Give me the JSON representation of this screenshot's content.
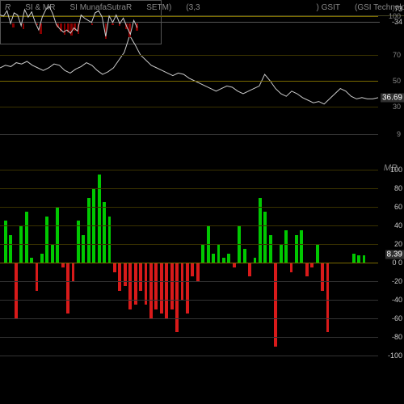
{
  "header": {
    "items": [
      "R",
      "SI & MR",
      "SI MunafaSutraR",
      "SETM)",
      "(3,3",
      "",
      "",
      "",
      "",
      "",
      "",
      "",
      ") GSIT",
      "(GSI Technology, Inc.) MunafaSutra.co"
    ]
  },
  "rsi_chart": {
    "type": "line",
    "ylim": [
      0,
      100
    ],
    "yticks": [
      9,
      30,
      50,
      70,
      100
    ],
    "grid_colors": {
      "light": "#7a6a00",
      "dark": "#3a3200",
      "lower": "#333"
    },
    "line_color": "#cccccc",
    "background": "#000000",
    "current_value": "36.69",
    "points_y": [
      60,
      62,
      61,
      64,
      63,
      65,
      62,
      60,
      58,
      60,
      63,
      62,
      58,
      56,
      59,
      61,
      64,
      62,
      58,
      55,
      57,
      60,
      66,
      72,
      85,
      78,
      70,
      66,
      62,
      60,
      58,
      56,
      54,
      56,
      55,
      52,
      50,
      48,
      46,
      44,
      42,
      44,
      46,
      45,
      42,
      40,
      42,
      44,
      46,
      55,
      50,
      44,
      40,
      38,
      42,
      40,
      37,
      35,
      33,
      34,
      32,
      36,
      40,
      44,
      42,
      38,
      36,
      37,
      36,
      36,
      37
    ]
  },
  "mr_chart": {
    "type": "bar",
    "label": "MR",
    "ylim": [
      -100,
      100
    ],
    "yticks": [
      -100,
      -80,
      -60,
      -40,
      -20,
      0,
      20,
      40,
      60,
      80,
      100
    ],
    "zero_ticks": [
      "0",
      "0"
    ],
    "grid_color_pos": "#3a3200",
    "grid_color_zero": "#7a6a00",
    "grid_color_neg": "#333333",
    "pos_color": "#00c800",
    "neg_color": "#d81a1a",
    "background": "#000000",
    "current_value": "8.39",
    "bars": [
      45,
      30,
      -60,
      40,
      55,
      5,
      -30,
      10,
      50,
      20,
      60,
      -5,
      -55,
      -20,
      45,
      30,
      70,
      80,
      95,
      65,
      50,
      -10,
      -30,
      -25,
      -50,
      -45,
      -30,
      -45,
      -60,
      -50,
      -55,
      -60,
      -50,
      -75,
      -40,
      -55,
      -15,
      -20,
      20,
      40,
      10,
      20,
      5,
      10,
      -5,
      40,
      15,
      -15,
      5,
      70,
      55,
      30,
      -90,
      20,
      35,
      -10,
      30,
      35,
      -15,
      -5,
      20,
      -30,
      -75,
      0,
      0,
      0,
      0,
      10,
      8,
      8
    ]
  },
  "mini_chart": {
    "type": "line_bar",
    "ylim": [
      -100,
      100
    ],
    "line_color": "#cccccc",
    "bar_neg_color": "#880000",
    "bar_pos_color": "#006600",
    "tags": [
      ".73",
      "-34"
    ],
    "points_y": [
      30,
      25,
      50,
      -10,
      40,
      30,
      -20,
      55,
      20,
      45,
      -5,
      -40,
      20,
      55,
      70,
      35,
      -15,
      -35,
      -50,
      -40,
      -55,
      -30,
      -45,
      30,
      15,
      5,
      -5,
      40,
      50,
      20,
      -70,
      25,
      -5,
      30,
      -10,
      15,
      -25,
      -60,
      5,
      -30
    ],
    "bars": [
      0,
      0,
      0,
      -20,
      0,
      0,
      -30,
      0,
      0,
      0,
      -10,
      -50,
      0,
      0,
      0,
      0,
      -20,
      -40,
      -55,
      -45,
      -60,
      -35,
      -50,
      0,
      0,
      0,
      -10,
      0,
      0,
      0,
      -75,
      0,
      -10,
      0,
      -15,
      0,
      -30,
      -65,
      0,
      -35
    ]
  }
}
